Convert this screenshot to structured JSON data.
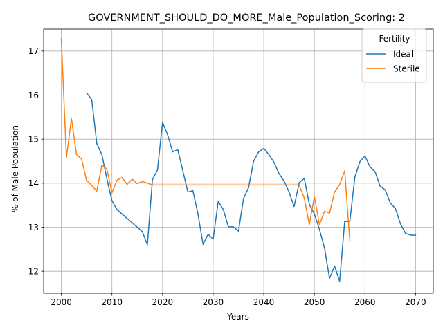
{
  "chart_data": {
    "type": "line",
    "title": "GOVERNMENT_SHOULD_DO_MORE_Male_Population_Scoring: 2",
    "xlabel": "Years",
    "ylabel": "% of Male Population",
    "xlim": [
      1996.5,
      2073.5
    ],
    "ylim": [
      11.5,
      17.5
    ],
    "xticks": [
      2000,
      2010,
      2020,
      2030,
      2040,
      2050,
      2060,
      2070
    ],
    "yticks": [
      12,
      13,
      14,
      15,
      16,
      17
    ],
    "grid": true,
    "legend": {
      "title": "Fertility",
      "position": "top-right"
    },
    "series": [
      {
        "name": "Ideal",
        "color": "#1f77b4",
        "points": [
          [
            2005,
            16.05
          ],
          [
            2006,
            15.9
          ],
          [
            2007,
            14.9
          ],
          [
            2008,
            14.65
          ],
          [
            2009,
            14.1
          ],
          [
            2010,
            13.6
          ],
          [
            2011,
            13.4
          ],
          [
            2012,
            13.3
          ],
          [
            2013,
            13.2
          ],
          [
            2014,
            13.1
          ],
          [
            2015,
            13.0
          ],
          [
            2016,
            12.9
          ],
          [
            2017,
            12.6
          ],
          [
            2018,
            14.08
          ],
          [
            2019,
            14.3
          ],
          [
            2020,
            15.38
          ],
          [
            2021,
            15.1
          ],
          [
            2022,
            14.71
          ],
          [
            2023,
            14.76
          ],
          [
            2024,
            14.28
          ],
          [
            2025,
            13.8
          ],
          [
            2026,
            13.83
          ],
          [
            2027,
            13.3
          ],
          [
            2028,
            12.61
          ],
          [
            2029,
            12.84
          ],
          [
            2030,
            12.73
          ],
          [
            2031,
            13.59
          ],
          [
            2032,
            13.4
          ],
          [
            2033,
            13.01
          ],
          [
            2034,
            13.01
          ],
          [
            2035,
            12.91
          ],
          [
            2036,
            13.65
          ],
          [
            2037,
            13.9
          ],
          [
            2038,
            14.5
          ],
          [
            2039,
            14.71
          ],
          [
            2040,
            14.79
          ],
          [
            2041,
            14.65
          ],
          [
            2042,
            14.48
          ],
          [
            2043,
            14.22
          ],
          [
            2044,
            14.05
          ],
          [
            2045,
            13.8
          ],
          [
            2046,
            13.47
          ],
          [
            2047,
            14.01
          ],
          [
            2048,
            14.11
          ],
          [
            2049,
            13.52
          ],
          [
            2050,
            13.3
          ],
          [
            2051,
            12.95
          ],
          [
            2052,
            12.53
          ],
          [
            2053,
            11.84
          ],
          [
            2054,
            12.12
          ],
          [
            2055,
            11.77
          ],
          [
            2056,
            13.13
          ],
          [
            2057,
            13.13
          ],
          [
            2058,
            14.14
          ],
          [
            2059,
            14.49
          ],
          [
            2060,
            14.62
          ],
          [
            2061,
            14.37
          ],
          [
            2062,
            14.26
          ],
          [
            2063,
            13.93
          ],
          [
            2064,
            13.85
          ],
          [
            2065,
            13.55
          ],
          [
            2066,
            13.43
          ],
          [
            2067,
            13.08
          ],
          [
            2068,
            12.86
          ],
          [
            2069,
            12.82
          ],
          [
            2070,
            12.82
          ]
        ]
      },
      {
        "name": "Sterile",
        "color": "#ff7f0e",
        "points": [
          [
            2000,
            17.28
          ],
          [
            2001,
            14.58
          ],
          [
            2002,
            15.47
          ],
          [
            2003,
            14.65
          ],
          [
            2004,
            14.55
          ],
          [
            2005,
            14.06
          ],
          [
            2006,
            13.95
          ],
          [
            2007,
            13.82
          ],
          [
            2008,
            14.41
          ],
          [
            2009,
            14.32
          ],
          [
            2010,
            13.78
          ],
          [
            2011,
            14.07
          ],
          [
            2012,
            14.13
          ],
          [
            2013,
            13.97
          ],
          [
            2014,
            14.09
          ],
          [
            2015,
            13.99
          ],
          [
            2016,
            14.04
          ],
          [
            2017,
            14.0
          ],
          [
            2018,
            13.96
          ],
          [
            2019,
            13.96
          ],
          [
            2020,
            13.96
          ],
          [
            2025,
            13.96
          ],
          [
            2030,
            13.96
          ],
          [
            2035,
            13.96
          ],
          [
            2040,
            13.96
          ],
          [
            2045,
            13.96
          ],
          [
            2047,
            13.96
          ],
          [
            2048,
            13.66
          ],
          [
            2049,
            13.06
          ],
          [
            2050,
            13.7
          ],
          [
            2051,
            13.06
          ],
          [
            2052,
            13.36
          ],
          [
            2053,
            13.32
          ],
          [
            2054,
            13.8
          ],
          [
            2055,
            13.97
          ],
          [
            2056,
            14.28
          ],
          [
            2057,
            12.69
          ]
        ]
      }
    ]
  }
}
